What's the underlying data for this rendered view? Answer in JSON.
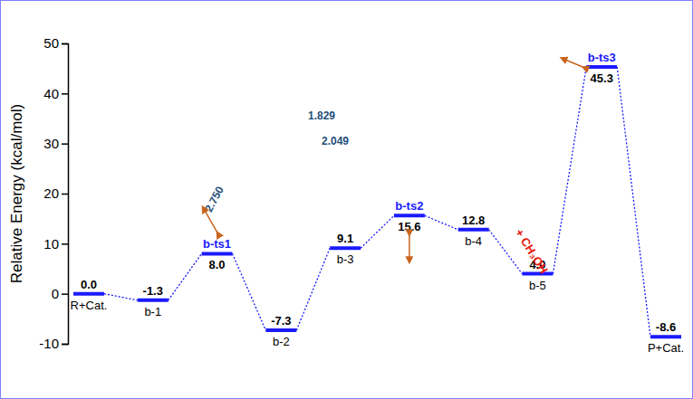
{
  "chart_data": {
    "type": "energy_profile",
    "y_label": "Relative Energy (kcal/mol)",
    "categories": [
      "R+Cat.",
      "b-1",
      "b-ts1",
      "b-2",
      "b-3",
      "b-ts2",
      "b-4",
      "b-5",
      "b-ts3",
      "P+Cat."
    ],
    "values": [
      0.0,
      -1.3,
      8.0,
      -7.3,
      9.1,
      15.6,
      12.8,
      4.0,
      45.3,
      -8.6
    ],
    "value_labels": [
      "0.0",
      "-1.3",
      "8.0",
      "-7.3",
      "9.1",
      "15.6",
      "12.8",
      "4.0",
      "45.3",
      "-8.6"
    ],
    "data_labels": true,
    "tick_labels": "y",
    "color": "#1a1aff",
    "ylim": [
      -10,
      50
    ],
    "yticks": [
      -10,
      0,
      10,
      20,
      30,
      40,
      50
    ],
    "annotations": [
      {
        "text": "+ CH₃OH",
        "color": "#e8160c"
      },
      {
        "text": "2.750",
        "color": "#1f4e79"
      },
      {
        "text": "1.829",
        "color": "#1f4e79"
      },
      {
        "text": "2.049",
        "color": "#1f4e79"
      }
    ]
  }
}
